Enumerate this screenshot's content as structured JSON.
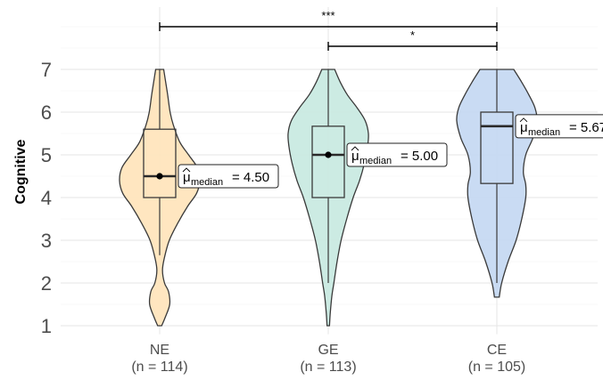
{
  "chart_data": {
    "type": "violin",
    "ylabel": "Cognitive",
    "xlabel": "",
    "ylim": [
      0.8,
      7.35
    ],
    "yticks": [
      1,
      2,
      3,
      4,
      5,
      6,
      7
    ],
    "grid": true,
    "groups": [
      {
        "name": "NE",
        "n_label": "(n = 114)",
        "color": "#FFE5BD",
        "median": 4.5,
        "q1": 4.0,
        "q3": 5.6,
        "whisker_low": 2.65,
        "whisker_high": 7.0,
        "median_label": "4.50",
        "show_point": true,
        "density": [
          [
            1.0,
            0.05
          ],
          [
            1.2,
            0.14
          ],
          [
            1.5,
            0.25
          ],
          [
            1.8,
            0.22
          ],
          [
            2.0,
            0.12
          ],
          [
            2.3,
            0.07
          ],
          [
            2.6,
            0.12
          ],
          [
            3.0,
            0.24
          ],
          [
            3.4,
            0.45
          ],
          [
            3.8,
            0.7
          ],
          [
            4.1,
            0.92
          ],
          [
            4.4,
            1.0
          ],
          [
            4.7,
            0.94
          ],
          [
            5.0,
            0.72
          ],
          [
            5.3,
            0.5
          ],
          [
            5.7,
            0.34
          ],
          [
            6.0,
            0.26
          ],
          [
            6.4,
            0.2
          ],
          [
            6.7,
            0.15
          ],
          [
            7.0,
            0.1
          ]
        ]
      },
      {
        "name": "GE",
        "n_label": "(n = 113)",
        "color": "#C9EAE1",
        "median": 5.0,
        "q1": 4.0,
        "q3": 5.67,
        "whisker_low": 2.0,
        "whisker_high": 7.0,
        "median_label": "5.00",
        "show_point": true,
        "density": [
          [
            1.0,
            0.03
          ],
          [
            1.3,
            0.05
          ],
          [
            1.7,
            0.09
          ],
          [
            2.0,
            0.14
          ],
          [
            2.5,
            0.22
          ],
          [
            3.0,
            0.32
          ],
          [
            3.5,
            0.46
          ],
          [
            4.0,
            0.62
          ],
          [
            4.4,
            0.78
          ],
          [
            4.8,
            0.9
          ],
          [
            5.2,
            0.98
          ],
          [
            5.5,
            1.0
          ],
          [
            5.8,
            0.92
          ],
          [
            6.1,
            0.72
          ],
          [
            6.4,
            0.48
          ],
          [
            6.7,
            0.3
          ],
          [
            7.0,
            0.16
          ]
        ]
      },
      {
        "name": "CE",
        "n_label": "(n = 105)",
        "color": "#C6D9F2",
        "median": 5.67,
        "q1": 4.33,
        "q3": 6.0,
        "whisker_low": 2.0,
        "whisker_high": 7.0,
        "median_label": "5.67",
        "show_point": false,
        "density": [
          [
            1.67,
            0.06
          ],
          [
            2.0,
            0.12
          ],
          [
            2.5,
            0.28
          ],
          [
            3.0,
            0.48
          ],
          [
            3.5,
            0.62
          ],
          [
            4.0,
            0.72
          ],
          [
            4.3,
            0.72
          ],
          [
            4.6,
            0.66
          ],
          [
            5.0,
            0.72
          ],
          [
            5.4,
            0.9
          ],
          [
            5.8,
            1.0
          ],
          [
            6.1,
            0.95
          ],
          [
            6.4,
            0.8
          ],
          [
            6.7,
            0.62
          ],
          [
            7.0,
            0.42
          ]
        ]
      }
    ],
    "annotation_label_symbol": "μ",
    "annotation_label_sub": "median",
    "comparisons": [
      {
        "from": "NE",
        "to": "CE",
        "label": "***"
      },
      {
        "from": "GE",
        "to": "CE",
        "label": "*"
      }
    ]
  }
}
